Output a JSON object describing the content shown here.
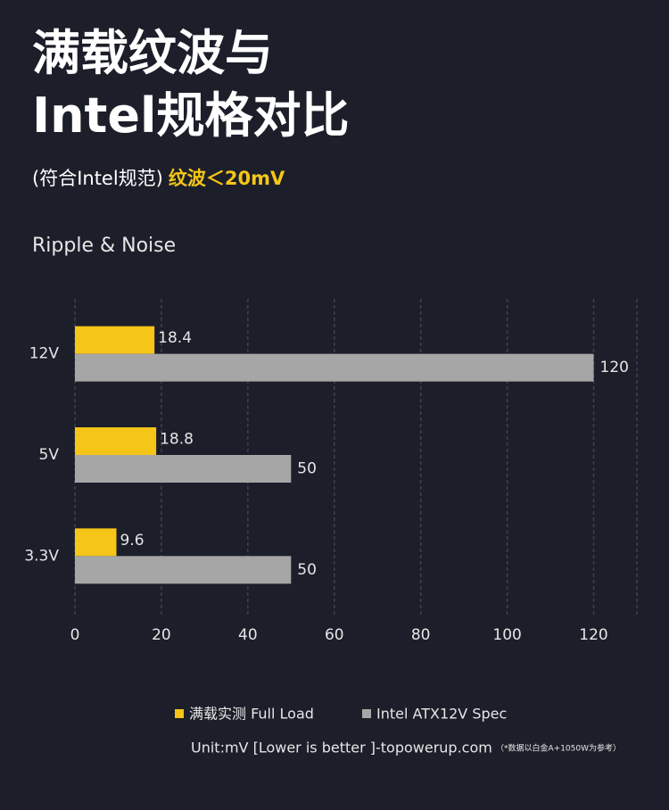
{
  "header": {
    "title_lines": [
      "满载纹波与",
      "Intel规格对比"
    ],
    "subtitle": "(符合Intel规范)",
    "highlight": "纹波＜20mV"
  },
  "chart_data": {
    "type": "hbar",
    "title": "Ripple & Noise",
    "categories": [
      "12V",
      "5V",
      "3.3V"
    ],
    "series": [
      {
        "name": "满载实测 Full Load",
        "color": "#f5c518",
        "values": [
          18.4,
          18.8,
          9.6
        ]
      },
      {
        "name": "Intel ATX12V Spec",
        "color": "#a6a6a6",
        "values": [
          120,
          50,
          50
        ]
      }
    ],
    "xlim": [
      0,
      130
    ],
    "xticks": [
      0,
      20,
      40,
      60,
      80,
      100,
      120
    ],
    "grid": true
  },
  "footer": {
    "text": "Unit:mV [Lower is better ]-topowerup.com",
    "note": "（*数据以白金A+1050W为参考）"
  }
}
